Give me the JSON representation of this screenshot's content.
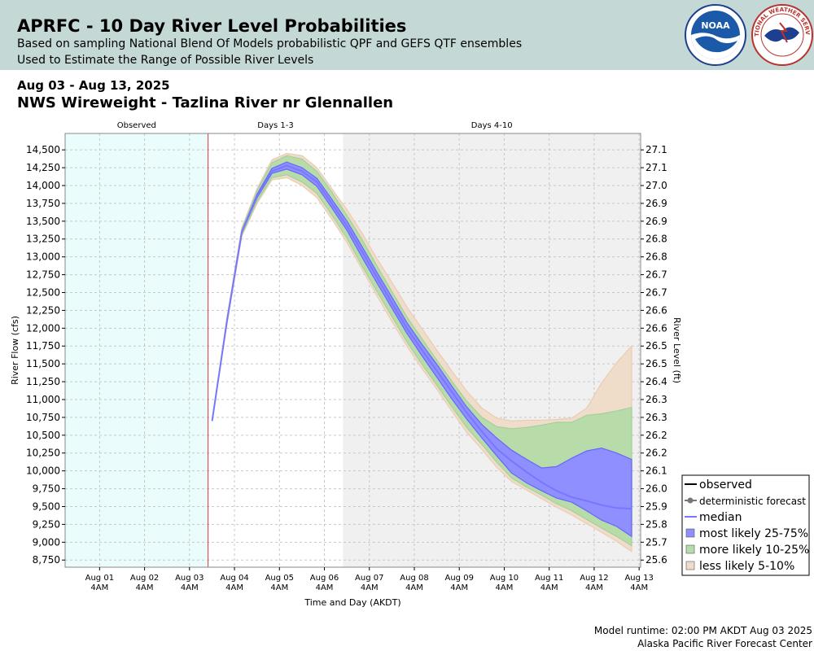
{
  "header": {
    "title": "APRFC - 10 Day River Level Probabilities",
    "subtitle1": "Based on sampling National Blend Of Models probabilistic QPF and GEFS QTF ensembles",
    "subtitle2": "Used to Estimate the Range of Possible River Levels",
    "noaa_logo_text": "NOAA",
    "nws_logo_text": "NATIONAL WEATHER SERVICE"
  },
  "date_range": "Aug 03 - Aug 13, 2025",
  "station": "NWS Wireweight - Tazlina River nr Glennallen",
  "footer": {
    "runtime": "Model runtime: 02:00 PM AKDT Aug 03 2025",
    "center": "Alaska Pacific River Forecast Center"
  },
  "chart_data": {
    "type": "area",
    "title": "",
    "xlabel": "Time and Day (AKDT)",
    "ylabel": "River Flow (cfs)",
    "ylabel_right": "River Level (ft)",
    "x_unit": "days since Aug 01 00:00 AKDT",
    "xlim": [
      -0.6,
      12.2
    ],
    "ylim": [
      8650,
      14730
    ],
    "yticks": [
      8750,
      9000,
      9250,
      9500,
      9750,
      10000,
      10250,
      10500,
      10750,
      11000,
      11250,
      11500,
      11750,
      12000,
      12250,
      12500,
      12750,
      13000,
      13250,
      13500,
      13750,
      14000,
      14250,
      14500
    ],
    "right_ticks": [
      {
        "flow": 8750,
        "label": "25.6"
      },
      {
        "flow": 9000,
        "label": "25.7"
      },
      {
        "flow": 9250,
        "label": "25.8"
      },
      {
        "flow": 9500,
        "label": "25.9"
      },
      {
        "flow": 9750,
        "label": "26.0"
      },
      {
        "flow": 10000,
        "label": "26.1"
      },
      {
        "flow": 10250,
        "label": "26.2"
      },
      {
        "flow": 10500,
        "label": "26.2"
      },
      {
        "flow": 10750,
        "label": "26.3"
      },
      {
        "flow": 11000,
        "label": "26.3"
      },
      {
        "flow": 11250,
        "label": "26.4"
      },
      {
        "flow": 11500,
        "label": "26.5"
      },
      {
        "flow": 11750,
        "label": "26.5"
      },
      {
        "flow": 12000,
        "label": "26.6"
      },
      {
        "flow": 12250,
        "label": "26.6"
      },
      {
        "flow": 12500,
        "label": "26.7"
      },
      {
        "flow": 12750,
        "label": "26.7"
      },
      {
        "flow": 13000,
        "label": "26.8"
      },
      {
        "flow": 13250,
        "label": "26.8"
      },
      {
        "flow": 13500,
        "label": "26.9"
      },
      {
        "flow": 13750,
        "label": "26.9"
      },
      {
        "flow": 14000,
        "label": "27.0"
      },
      {
        "flow": 14250,
        "label": "27.1"
      },
      {
        "flow": 14500,
        "label": "27.1"
      }
    ],
    "xticks": [
      {
        "x": 0.1667,
        "line1": "Aug 01",
        "line2": "4AM"
      },
      {
        "x": 1.1667,
        "line1": "Aug 02",
        "line2": "4AM"
      },
      {
        "x": 2.1667,
        "line1": "Aug 03",
        "line2": "4AM"
      },
      {
        "x": 3.1667,
        "line1": "Aug 04",
        "line2": "4AM"
      },
      {
        "x": 4.1667,
        "line1": "Aug 05",
        "line2": "4AM"
      },
      {
        "x": 5.1667,
        "line1": "Aug 06",
        "line2": "4AM"
      },
      {
        "x": 6.1667,
        "line1": "Aug 07",
        "line2": "4AM"
      },
      {
        "x": 7.1667,
        "line1": "Aug 08",
        "line2": "4AM"
      },
      {
        "x": 8.1667,
        "line1": "Aug 09",
        "line2": "4AM"
      },
      {
        "x": 9.1667,
        "line1": "Aug 10",
        "line2": "4AM"
      },
      {
        "x": 10.1667,
        "line1": "Aug 11",
        "line2": "4AM"
      },
      {
        "x": 11.1667,
        "line1": "Aug 12",
        "line2": "4AM"
      },
      {
        "x": 12.1667,
        "line1": "Aug 13",
        "line2": "4AM"
      }
    ],
    "regions": [
      {
        "label": "Observed",
        "x0": -0.6,
        "x1": 2.58,
        "fill": "#ebfcfc"
      },
      {
        "label": "Days 1-3",
        "x0": 2.58,
        "x1": 5.58,
        "fill": "#ffffff"
      },
      {
        "label": "Days 4-10",
        "x0": 5.58,
        "x1": 12.2,
        "fill": "#f0f0f0"
      }
    ],
    "forecast_start_x": 2.58,
    "x": [
      2.67,
      3.0,
      3.33,
      3.67,
      4.0,
      4.33,
      4.67,
      5.0,
      5.33,
      5.67,
      6.0,
      6.33,
      6.67,
      7.0,
      7.33,
      7.67,
      8.0,
      8.33,
      8.67,
      9.0,
      9.33,
      9.67,
      10.0,
      10.33,
      10.67,
      11.0,
      11.33,
      11.67,
      12.0
    ],
    "series": [
      {
        "name": "median",
        "color": "#7777ff",
        "values": [
          10700,
          12100,
          13350,
          13850,
          14200,
          14280,
          14200,
          14050,
          13750,
          13430,
          13080,
          12720,
          12350,
          12000,
          11700,
          11400,
          11110,
          10820,
          10550,
          10310,
          10140,
          9980,
          9840,
          9720,
          9630,
          9580,
          9520,
          9480,
          9470
        ]
      },
      {
        "name": "most likely 25-75%",
        "color": "#6666ff",
        "upper": [
          10700,
          12110,
          13360,
          13880,
          14240,
          14330,
          14250,
          14100,
          13810,
          13500,
          13150,
          12790,
          12430,
          12080,
          11780,
          11490,
          11190,
          10900,
          10650,
          10460,
          10290,
          10160,
          10040,
          10060,
          10180,
          10280,
          10320,
          10250,
          10160
        ],
        "lower": [
          10700,
          12090,
          13340,
          13830,
          14170,
          14230,
          14150,
          13990,
          13690,
          13370,
          13000,
          12640,
          12280,
          11930,
          11620,
          11310,
          11010,
          10730,
          10460,
          10210,
          9970,
          9830,
          9720,
          9620,
          9560,
          9440,
          9310,
          9220,
          9080
        ]
      },
      {
        "name": "more likely 10-25%",
        "color": "#a6cf9b",
        "upper": [
          10700,
          12130,
          13390,
          13930,
          14320,
          14420,
          14370,
          14200,
          13910,
          13580,
          13250,
          12880,
          12510,
          12160,
          11860,
          11550,
          11260,
          10980,
          10750,
          10620,
          10590,
          10610,
          10640,
          10680,
          10680,
          10780,
          10800,
          10840,
          10890
        ]
      },
      {
        "name": "less likely 5-10%",
        "color": "#e8cdb4",
        "upper": [
          10700,
          12150,
          13410,
          13960,
          14360,
          14450,
          14420,
          14250,
          13960,
          13660,
          13340,
          12980,
          12640,
          12300,
          12000,
          11690,
          11400,
          11120,
          10880,
          10740,
          10700,
          10710,
          10710,
          10720,
          10740,
          10880,
          11230,
          11520,
          11750
        ]
      }
    ],
    "lower_bounds": {
      "more likely 10-25%": [
        10700,
        12070,
        13310,
        13780,
        14110,
        14150,
        14050,
        13890,
        13590,
        13260,
        12880,
        12520,
        12160,
        11810,
        11500,
        11200,
        10900,
        10610,
        10370,
        10120,
        9900,
        9770,
        9660,
        9540,
        9440,
        9320,
        9200,
        9080,
        8950
      ],
      "less likely 5-10%": [
        10700,
        12050,
        13290,
        13750,
        14080,
        14110,
        14000,
        13830,
        13530,
        13200,
        12830,
        12460,
        12090,
        11750,
        11440,
        11140,
        10840,
        10540,
        10300,
        10050,
        9850,
        9730,
        9610,
        9490,
        9380,
        9260,
        9140,
        9010,
        8870
      ]
    },
    "legend": {
      "placement": "bottom-right",
      "items": [
        {
          "label": "observed",
          "kind": "line",
          "color": "#000000"
        },
        {
          "label": "deterministic forecast",
          "kind": "marker-line",
          "color": "#777777"
        },
        {
          "label": "median",
          "kind": "line",
          "color": "#7777ff"
        },
        {
          "label": "most likely 25-75%",
          "kind": "box",
          "color": "#8f8fff"
        },
        {
          "label": "more likely 10-25%",
          "kind": "box",
          "color": "#b7dcaa"
        },
        {
          "label": "less likely 5-10%",
          "kind": "box",
          "color": "#efddca"
        }
      ]
    },
    "grid": true
  }
}
